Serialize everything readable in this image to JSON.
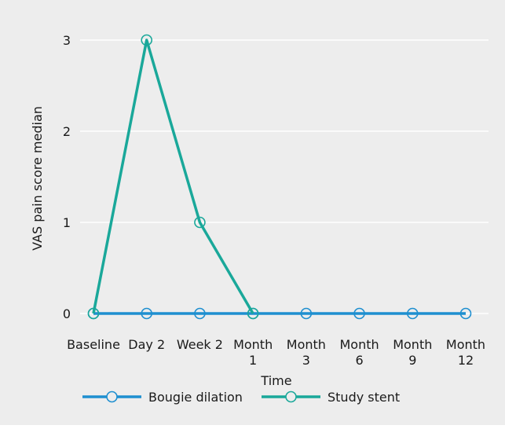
{
  "chart_data": {
    "type": "line",
    "xlabel": "Time",
    "ylabel": "VAS pain score median",
    "categories": [
      [
        "Baseline"
      ],
      [
        "Day 2"
      ],
      [
        "Week 2"
      ],
      [
        "Month",
        "1"
      ],
      [
        "Month",
        "3"
      ],
      [
        "Month",
        "6"
      ],
      [
        "Month",
        "9"
      ],
      [
        "Month",
        "12"
      ]
    ],
    "ylim": [
      0,
      3
    ],
    "yticks": [
      0,
      1,
      2,
      3
    ],
    "grid": true,
    "legend_position": "bottom",
    "series": [
      {
        "name": "Bougie dilation",
        "color": "#1e8fd0",
        "marker": "open-circle",
        "values": [
          0,
          0,
          0,
          0,
          0,
          0,
          0,
          0
        ]
      },
      {
        "name": "Study stent",
        "color": "#1aa89a",
        "marker": "open-circle",
        "values": [
          0,
          3,
          1,
          0,
          null,
          null,
          null,
          null
        ]
      }
    ],
    "colors": {
      "background": "#ededed",
      "grid": "#ffffff"
    }
  }
}
